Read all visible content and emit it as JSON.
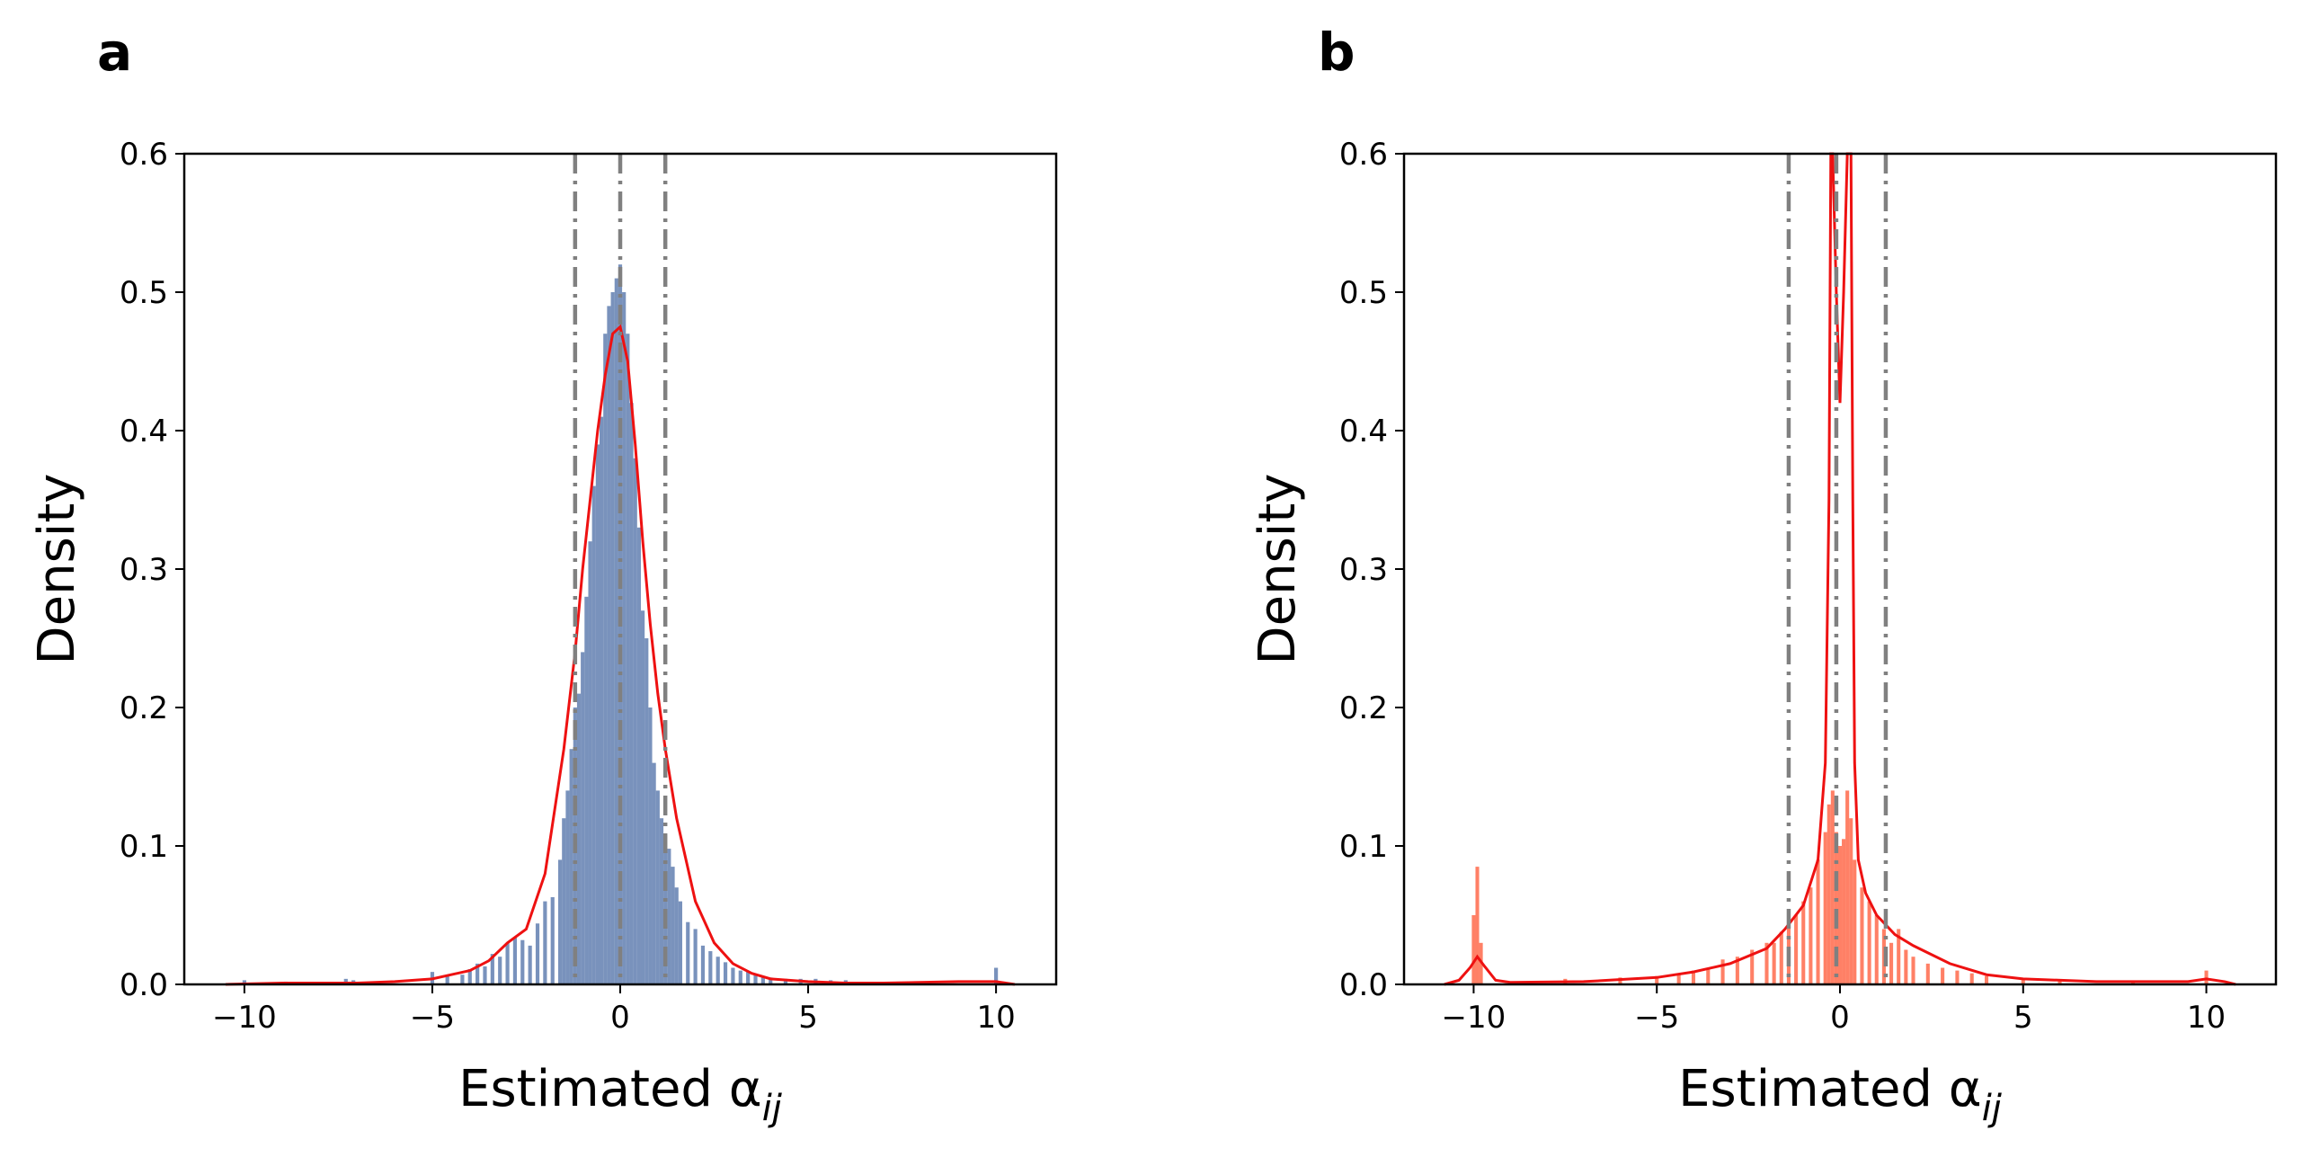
{
  "chart_data": [
    {
      "type": "bar",
      "panel_label": "a",
      "xlabel": "Estimated α",
      "xlabel_subscript": "ij",
      "ylabel": "Density",
      "xlim": [
        -11.6,
        11.6
      ],
      "ylim": [
        0,
        0.6
      ],
      "xticks": [
        -10,
        -5,
        0,
        5,
        10
      ],
      "xtick_labels": [
        "−10",
        "−5",
        "0",
        "5",
        "10"
      ],
      "yticks": [
        0.0,
        0.1,
        0.2,
        0.3,
        0.4,
        0.5,
        0.6
      ],
      "ytick_labels": [
        "0.0",
        "0.1",
        "0.2",
        "0.3",
        "0.4",
        "0.5",
        "0.6"
      ],
      "grid": false,
      "colors": {
        "histogram": "#4c6ea5",
        "kde": "#ee1111",
        "reference_lines": "#808080"
      },
      "histogram": {
        "bin_width": 0.1,
        "x": [
          -10.0,
          -8.9,
          -7.3,
          -7.1,
          -5.0,
          -4.6,
          -4.2,
          -4.0,
          -3.8,
          -3.6,
          -3.4,
          -3.2,
          -3.0,
          -2.8,
          -2.6,
          -2.4,
          -2.2,
          -2.0,
          -1.8,
          -1.6,
          -1.5,
          -1.4,
          -1.3,
          -1.2,
          -1.1,
          -1.0,
          -0.9,
          -0.8,
          -0.7,
          -0.6,
          -0.5,
          -0.4,
          -0.3,
          -0.2,
          -0.1,
          0.0,
          0.1,
          0.2,
          0.3,
          0.4,
          0.5,
          0.6,
          0.7,
          0.8,
          0.9,
          1.0,
          1.1,
          1.2,
          1.3,
          1.4,
          1.5,
          1.6,
          1.8,
          2.0,
          2.2,
          2.4,
          2.6,
          2.8,
          3.0,
          3.2,
          3.4,
          3.6,
          3.8,
          4.0,
          4.4,
          4.8,
          5.2,
          5.6,
          6.0,
          7.4,
          8.1,
          10.0
        ],
        "density": [
          0.003,
          0.002,
          0.004,
          0.003,
          0.009,
          0.007,
          0.007,
          0.011,
          0.015,
          0.013,
          0.022,
          0.02,
          0.03,
          0.034,
          0.032,
          0.028,
          0.044,
          0.06,
          0.063,
          0.09,
          0.12,
          0.14,
          0.17,
          0.2,
          0.21,
          0.24,
          0.28,
          0.32,
          0.36,
          0.39,
          0.41,
          0.47,
          0.49,
          0.5,
          0.51,
          0.52,
          0.5,
          0.47,
          0.42,
          0.38,
          0.33,
          0.27,
          0.25,
          0.2,
          0.16,
          0.14,
          0.12,
          0.108,
          0.098,
          0.085,
          0.07,
          0.06,
          0.045,
          0.04,
          0.028,
          0.024,
          0.02,
          0.016,
          0.012,
          0.01,
          0.009,
          0.007,
          0.006,
          0.005,
          0.004,
          0.004,
          0.004,
          0.003,
          0.003,
          0.002,
          0.002,
          0.012
        ]
      },
      "kde": {
        "x": [
          -10.5,
          -9.0,
          -7.0,
          -6.0,
          -5.0,
          -4.0,
          -3.5,
          -3.0,
          -2.5,
          -2.0,
          -1.5,
          -1.2,
          -1.0,
          -0.8,
          -0.6,
          -0.4,
          -0.2,
          0.0,
          0.2,
          0.4,
          0.6,
          0.8,
          1.0,
          1.2,
          1.5,
          2.0,
          2.5,
          3.0,
          3.5,
          4.0,
          5.0,
          6.0,
          7.0,
          9.0,
          10.0,
          10.5
        ],
        "density": [
          0.0,
          0.001,
          0.001,
          0.002,
          0.004,
          0.01,
          0.017,
          0.03,
          0.04,
          0.08,
          0.17,
          0.24,
          0.3,
          0.35,
          0.4,
          0.44,
          0.47,
          0.475,
          0.45,
          0.39,
          0.32,
          0.26,
          0.21,
          0.17,
          0.12,
          0.06,
          0.03,
          0.015,
          0.008,
          0.004,
          0.002,
          0.001,
          0.001,
          0.002,
          0.002,
          0.0
        ]
      },
      "reference_lines_x": [
        -1.2,
        0.0,
        1.2
      ]
    },
    {
      "type": "bar",
      "panel_label": "b",
      "xlabel": "Estimated α",
      "xlabel_subscript": "ij",
      "ylabel": "Density",
      "xlim": [
        -11.9,
        11.9
      ],
      "ylim": [
        0,
        0.6
      ],
      "xticks": [
        -10,
        -5,
        0,
        5,
        10
      ],
      "xtick_labels": [
        "−10",
        "−5",
        "0",
        "5",
        "10"
      ],
      "yticks": [
        0.0,
        0.1,
        0.2,
        0.3,
        0.4,
        0.5,
        0.6
      ],
      "ytick_labels": [
        "0.0",
        "0.1",
        "0.2",
        "0.3",
        "0.4",
        "0.5",
        "0.6"
      ],
      "grid": false,
      "colors": {
        "histogram": "#ff5533",
        "kde": "#ee1111",
        "reference_lines": "#808080"
      },
      "histogram": {
        "bin_width": 0.1,
        "x": [
          -10.0,
          -9.9,
          -9.8,
          -7.5,
          -6.0,
          -5.0,
          -4.4,
          -4.0,
          -3.6,
          -3.2,
          -2.8,
          -2.4,
          -2.0,
          -1.8,
          -1.6,
          -1.4,
          -1.2,
          -1.0,
          -0.8,
          -0.6,
          -0.4,
          -0.3,
          -0.2,
          -0.1,
          0.0,
          0.1,
          0.2,
          0.3,
          0.4,
          0.6,
          0.8,
          1.0,
          1.2,
          1.4,
          1.6,
          1.8,
          2.0,
          2.4,
          2.8,
          3.2,
          3.6,
          4.0,
          5.0,
          6.0,
          8.0,
          10.0
        ],
        "density": [
          0.05,
          0.085,
          0.03,
          0.004,
          0.005,
          0.006,
          0.008,
          0.01,
          0.012,
          0.018,
          0.02,
          0.025,
          0.03,
          0.03,
          0.038,
          0.042,
          0.05,
          0.06,
          0.07,
          0.09,
          0.11,
          0.13,
          0.14,
          0.11,
          0.1,
          0.105,
          0.14,
          0.12,
          0.09,
          0.07,
          0.06,
          0.05,
          0.04,
          0.03,
          0.04,
          0.025,
          0.02,
          0.015,
          0.012,
          0.01,
          0.008,
          0.006,
          0.004,
          0.003,
          0.002,
          0.01
        ]
      },
      "kde": {
        "x": [
          -10.8,
          -10.4,
          -10.1,
          -9.9,
          -9.7,
          -9.4,
          -9.0,
          -7.0,
          -5.0,
          -4.0,
          -3.0,
          -2.0,
          -1.5,
          -1.0,
          -0.6,
          -0.4,
          -0.3,
          -0.25,
          -0.2,
          -0.1,
          0.0,
          0.1,
          0.2,
          0.3,
          0.35,
          0.4,
          0.5,
          0.7,
          1.0,
          1.5,
          2.0,
          3.0,
          4.0,
          5.0,
          7.0,
          9.5,
          10.0,
          10.5,
          10.8
        ],
        "density": [
          0.0,
          0.003,
          0.012,
          0.02,
          0.013,
          0.003,
          0.0015,
          0.002,
          0.005,
          0.009,
          0.015,
          0.026,
          0.04,
          0.057,
          0.09,
          0.16,
          0.35,
          0.6,
          0.6,
          0.5,
          0.42,
          0.5,
          0.6,
          0.6,
          0.35,
          0.16,
          0.09,
          0.066,
          0.05,
          0.036,
          0.028,
          0.015,
          0.007,
          0.004,
          0.002,
          0.002,
          0.004,
          0.002,
          0.0
        ]
      },
      "reference_lines_x": [
        -1.4,
        -0.1,
        1.25
      ]
    }
  ]
}
